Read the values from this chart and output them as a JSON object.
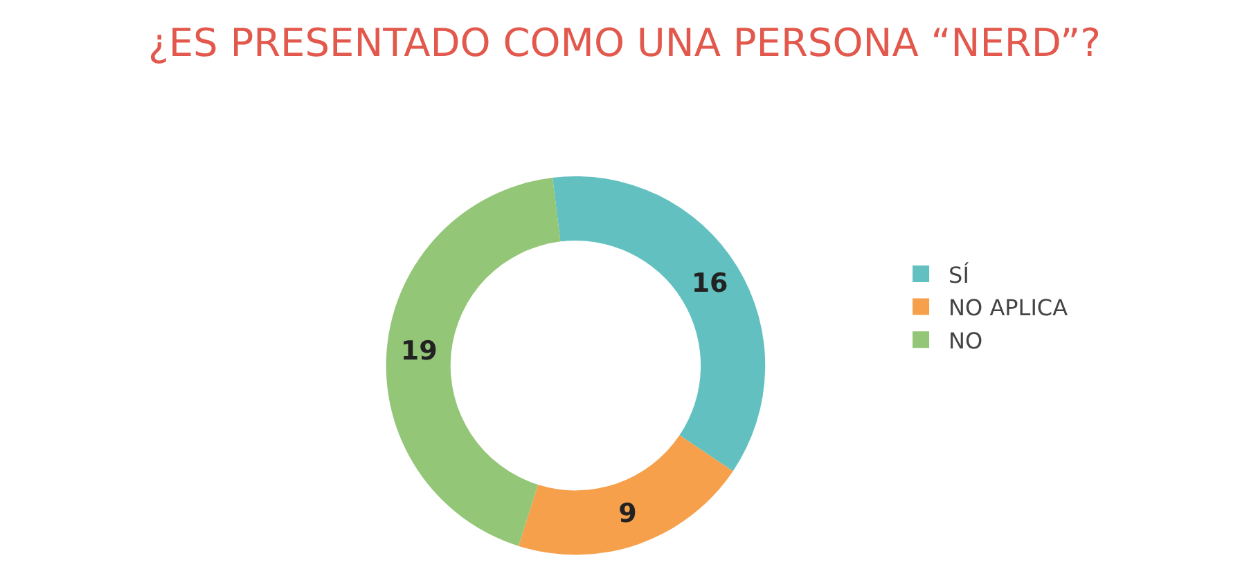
{
  "chart_data": {
    "type": "donut",
    "title": "¿ES PRESENTADO COMO UNA PERSONA “NERD”?",
    "categories": [
      "SÍ",
      "NO APLICA",
      "NO"
    ],
    "values": [
      16,
      9,
      19
    ],
    "colors": [
      "#62c1c0",
      "#f6a04b",
      "#93c677"
    ],
    "data_labels": true,
    "legend": "right"
  }
}
